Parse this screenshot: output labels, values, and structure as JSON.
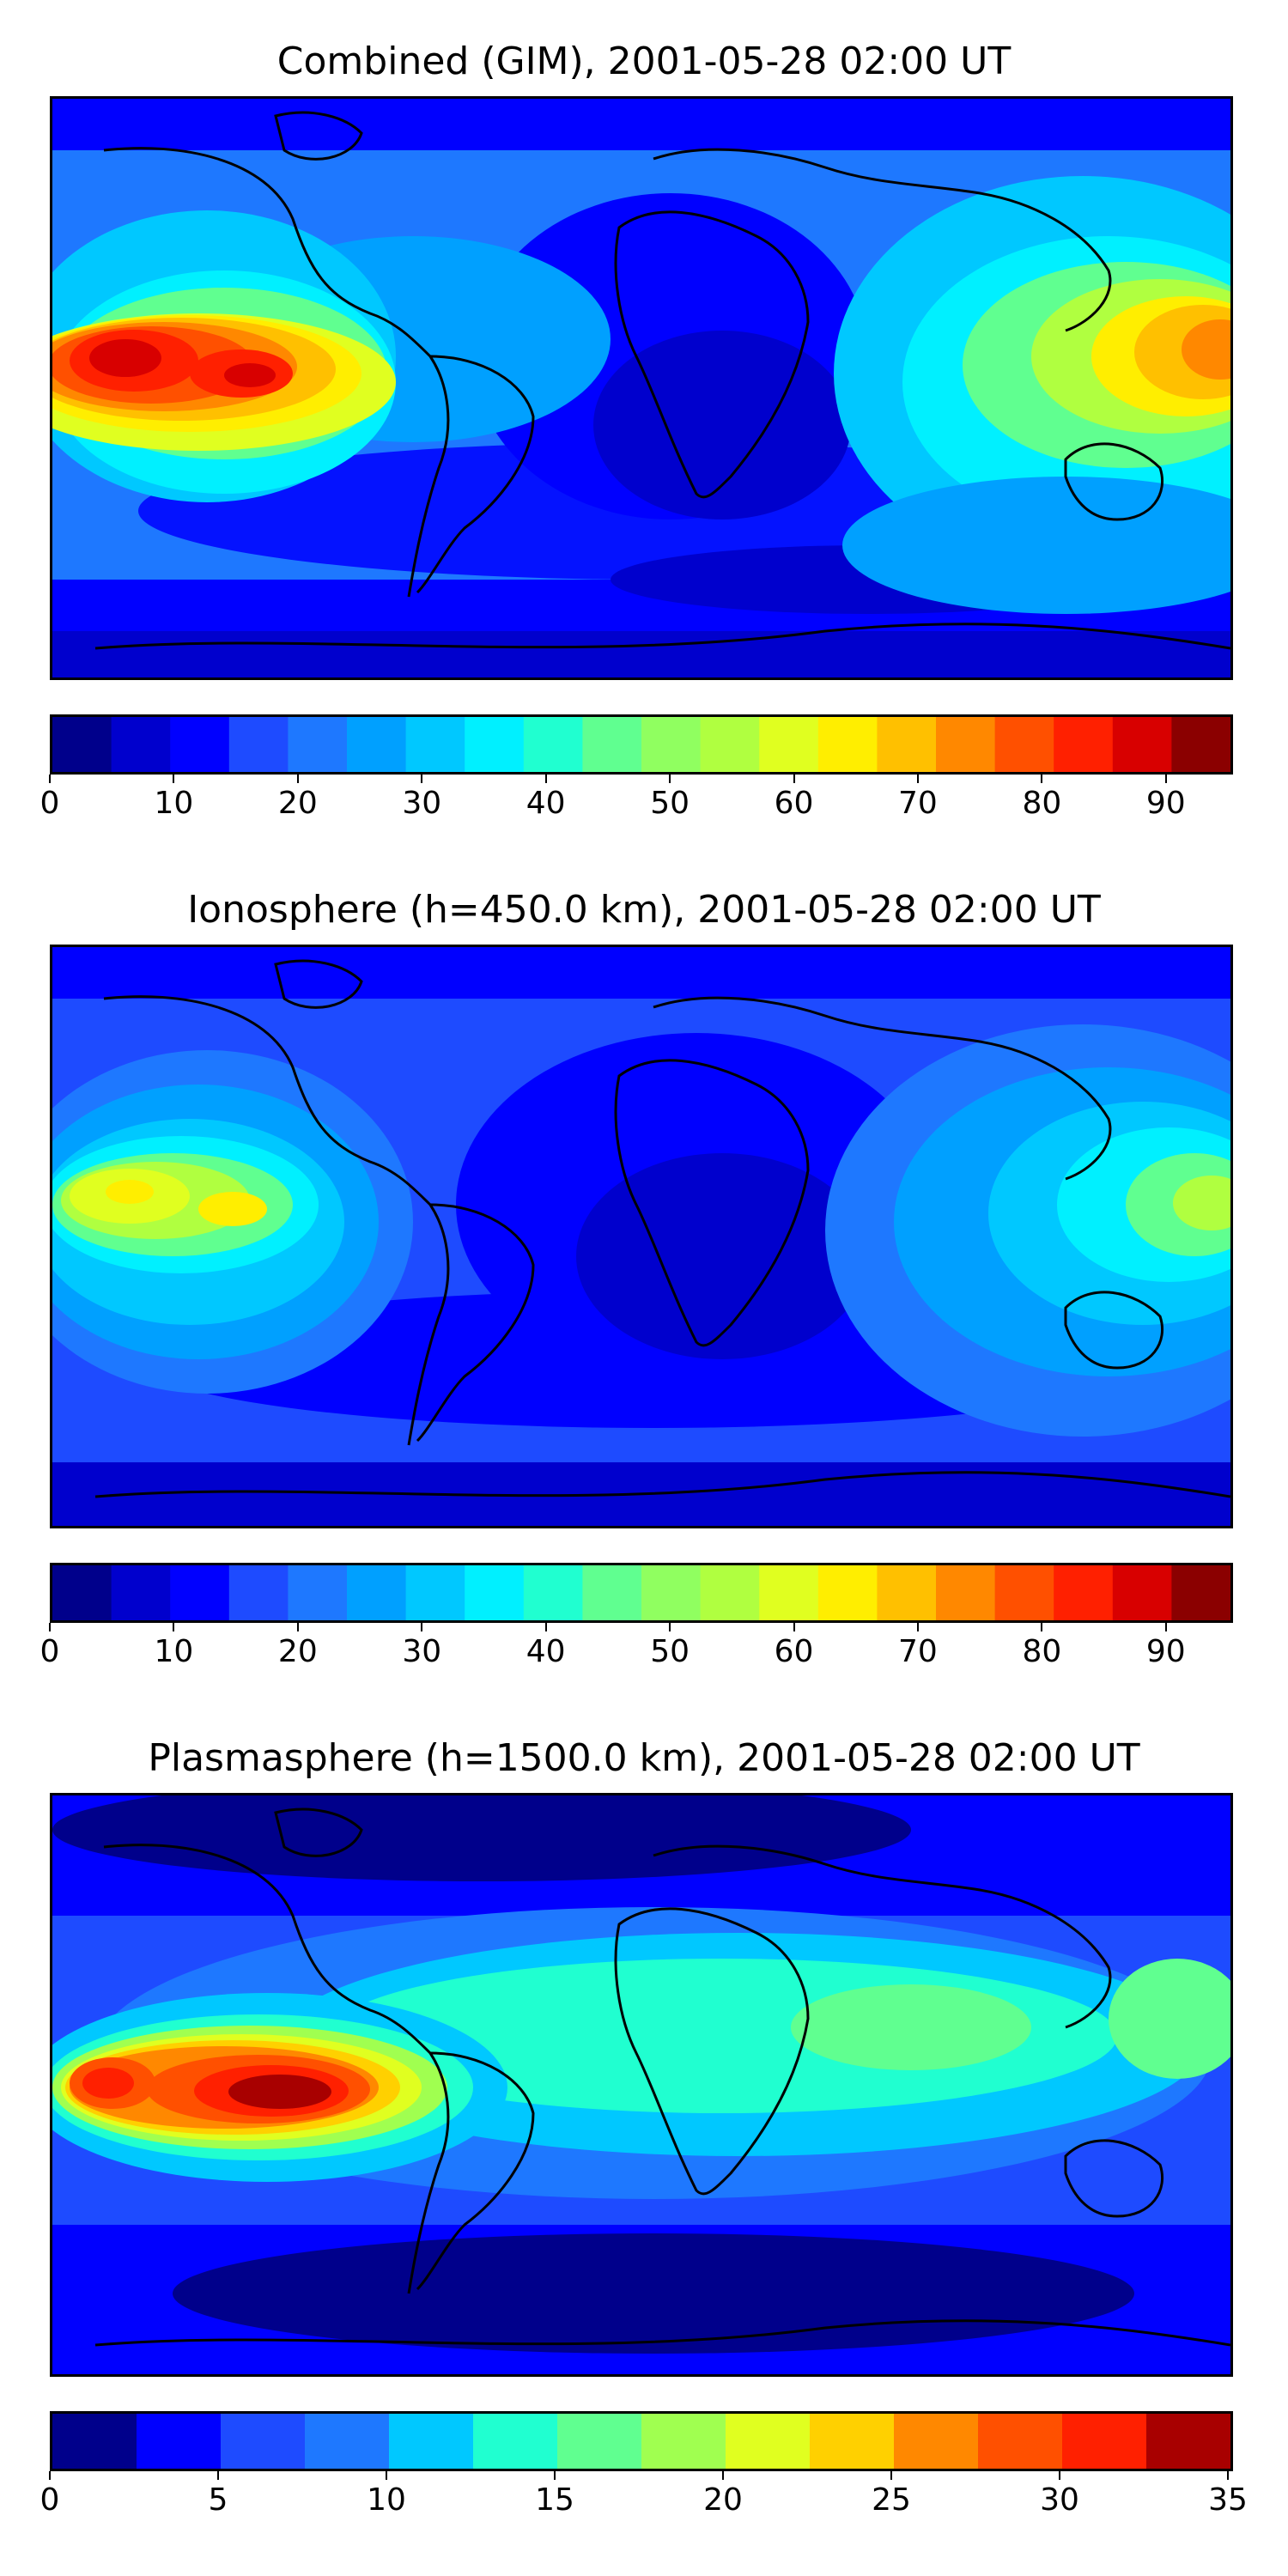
{
  "panels": [
    {
      "title": "Combined (GIM), 2001-05-28 02:00 UT",
      "colorbar": {
        "min": 0,
        "max": 95,
        "step": 5,
        "ticks": [
          "0",
          "10",
          "20",
          "30",
          "40",
          "50",
          "60",
          "70",
          "80",
          "90"
        ],
        "tick_values": [
          0,
          10,
          20,
          30,
          40,
          50,
          60,
          70,
          80,
          90
        ],
        "colors": [
          "#00008b",
          "#0000cd",
          "#0000ff",
          "#1e4bff",
          "#1e78ff",
          "#00a0ff",
          "#00c8ff",
          "#00f0ff",
          "#20ffd0",
          "#60ff90",
          "#90ff60",
          "#b0ff40",
          "#e0ff20",
          "#ffee00",
          "#ffc000",
          "#ff8800",
          "#ff5000",
          "#ff2000",
          "#d80000",
          "#8b0000"
        ]
      }
    },
    {
      "title": "Ionosphere  (h=450.0 km), 2001-05-28 02:00 UT",
      "colorbar": {
        "min": 0,
        "max": 95,
        "step": 5,
        "ticks": [
          "0",
          "10",
          "20",
          "30",
          "40",
          "50",
          "60",
          "70",
          "80",
          "90"
        ],
        "tick_values": [
          0,
          10,
          20,
          30,
          40,
          50,
          60,
          70,
          80,
          90
        ],
        "colors": [
          "#00008b",
          "#0000cd",
          "#0000ff",
          "#1e4bff",
          "#1e78ff",
          "#00a0ff",
          "#00c8ff",
          "#00f0ff",
          "#20ffd0",
          "#60ff90",
          "#90ff60",
          "#b0ff40",
          "#e0ff20",
          "#ffee00",
          "#ffc000",
          "#ff8800",
          "#ff5000",
          "#ff2000",
          "#d80000",
          "#8b0000"
        ]
      }
    },
    {
      "title": "Plasmasphere (h=1500.0 km), 2001-05-28 02:00 UT",
      "colorbar": {
        "min": 0,
        "max": 35,
        "step": 2.5,
        "ticks": [
          "0",
          "5",
          "10",
          "15",
          "20",
          "25",
          "30",
          "35"
        ],
        "tick_values": [
          0,
          5,
          10,
          15,
          20,
          25,
          30,
          35
        ],
        "colors": [
          "#00008b",
          "#0000ff",
          "#1e4bff",
          "#1e78ff",
          "#00c8ff",
          "#20ffd0",
          "#60ff90",
          "#a0ff50",
          "#e0ff20",
          "#ffd000",
          "#ff8800",
          "#ff5000",
          "#ff2000",
          "#a80000"
        ]
      }
    }
  ]
}
